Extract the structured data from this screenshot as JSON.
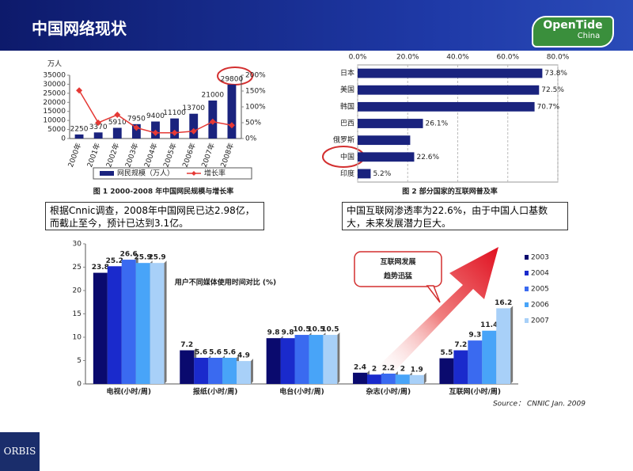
{
  "header": {
    "title": "中国网络现状",
    "logo": "OpenTide",
    "logo_sub": "China"
  },
  "notes": [
    "根据Cnnic调查，2008年中国网民已达2.98亿，而截止至今，预计已达到3.1亿。",
    "中国互联网渗透率为22.6%，由于中国人口基数大，未来发展潜力巨大。"
  ],
  "footer": {
    "brand": "ORBIS"
  },
  "chart_data": [
    {
      "type": "bar",
      "caption": "图 1   2000-2008 年中国网民规模与增长率",
      "y_label": "万人",
      "categories": [
        "2000年",
        "2001年",
        "2002年",
        "2003年",
        "2004年",
        "2005年",
        "2006年",
        "2007年",
        "2008年"
      ],
      "series": [
        {
          "name": "网民规模（万人）",
          "color": "#1a237e",
          "values": [
            2250,
            3370,
            5910,
            7950,
            9400,
            11100,
            13700,
            21000,
            29800
          ]
        },
        {
          "name": "增长率",
          "color": "#e53935",
          "type": "line",
          "axis": "y2",
          "values": [
            152,
            50,
            75,
            34,
            18,
            18,
            23,
            53,
            42
          ]
        }
      ],
      "ylim": [
        0,
        35000
      ],
      "yticks": [
        0,
        5000,
        10000,
        15000,
        20000,
        25000,
        30000,
        35000
      ],
      "y2lim": [
        0,
        200
      ],
      "y2ticks": [
        {
          "value": 0,
          "label": "0%"
        },
        {
          "value": 50,
          "label": "50%"
        },
        {
          "value": 100,
          "label": "100%"
        },
        {
          "value": 150,
          "label": "150%"
        },
        {
          "value": 200,
          "label": "200%"
        }
      ],
      "grid": false,
      "data_labels": true,
      "rotate_labels": true,
      "legend": "bottom"
    },
    {
      "type": "bar",
      "orientation": "horizontal",
      "caption": "图 2   部分国家的互联网普及率",
      "categories": [
        "日本",
        "美国",
        "韩国",
        "巴西",
        "俄罗斯",
        "中国",
        "印度"
      ],
      "values": [
        73.8,
        72.5,
        70.7,
        26.1,
        21,
        22.6,
        5.2
      ],
      "value_labels": [
        "73.8%",
        "72.5%",
        "70.7%",
        "26.1%",
        null,
        "22.6%",
        "5.2%"
      ],
      "color": "#1a237e",
      "xlim": [
        0,
        80
      ],
      "xticks": [
        {
          "value": 0,
          "label": "0.0%"
        },
        {
          "value": 20,
          "label": "20.0%"
        },
        {
          "value": 40,
          "label": "40.0%"
        },
        {
          "value": 60,
          "label": "60.0%"
        },
        {
          "value": 80,
          "label": "80.0%"
        }
      ],
      "grid": true
    },
    {
      "type": "bar",
      "title": "用户不同媒体使用时间对比 (%)",
      "categories": [
        "电视(小时/周)",
        "报纸(小时/周)",
        "电台(小时/周)",
        "杂志(小时/周)",
        "互联网(小时/周)"
      ],
      "series": [
        {
          "name": "2003",
          "color": "#0a0a6e",
          "values": [
            23.8,
            7.2,
            9.8,
            2.4,
            5.5
          ]
        },
        {
          "name": "2004",
          "color": "#1a2acc",
          "values": [
            25.2,
            5.6,
            9.8,
            2,
            7.2
          ]
        },
        {
          "name": "2005",
          "color": "#3a6af0",
          "values": [
            26.6,
            5.6,
            10.5,
            2.2,
            9.3
          ]
        },
        {
          "name": "2006",
          "color": "#48a4f8",
          "values": [
            25.9,
            5.6,
            10.5,
            2,
            11.4
          ]
        },
        {
          "name": "2007",
          "color": "#a8d0f8",
          "values": [
            25.9,
            4.9,
            10.5,
            1.9,
            16.2
          ]
        }
      ],
      "ylim": [
        0,
        30
      ],
      "yticks": [
        0,
        5,
        10,
        15,
        20,
        25,
        30
      ],
      "grid": false,
      "data_labels": true,
      "legend": "right",
      "annotation": [
        "互联网发展",
        "趋势迅猛"
      ],
      "source": "Source： CNNIC Jan. 2009"
    }
  ]
}
